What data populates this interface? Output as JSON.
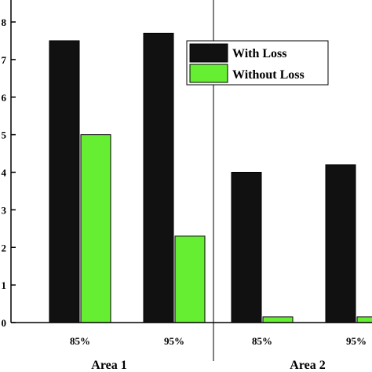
{
  "chart_data": {
    "type": "bar",
    "ylim": [
      0,
      8
    ],
    "yticks": [
      0,
      1,
      2,
      3,
      4,
      5,
      6,
      7,
      8
    ],
    "grid": false,
    "legend_position": "top-right",
    "groups": [
      "Area 1",
      "Area 2"
    ],
    "categories": [
      "85%",
      "95%",
      "85%",
      "95%"
    ],
    "category_group": [
      "Area 1",
      "Area 1",
      "Area 2",
      "Area 2"
    ],
    "series": [
      {
        "name": "With Loss",
        "color": "#111111",
        "values": [
          7.5,
          7.7,
          4.0,
          4.2
        ]
      },
      {
        "name": "Without Loss",
        "color": "#66ee33",
        "values": [
          5.0,
          2.3,
          0.15,
          0.15
        ]
      }
    ]
  }
}
